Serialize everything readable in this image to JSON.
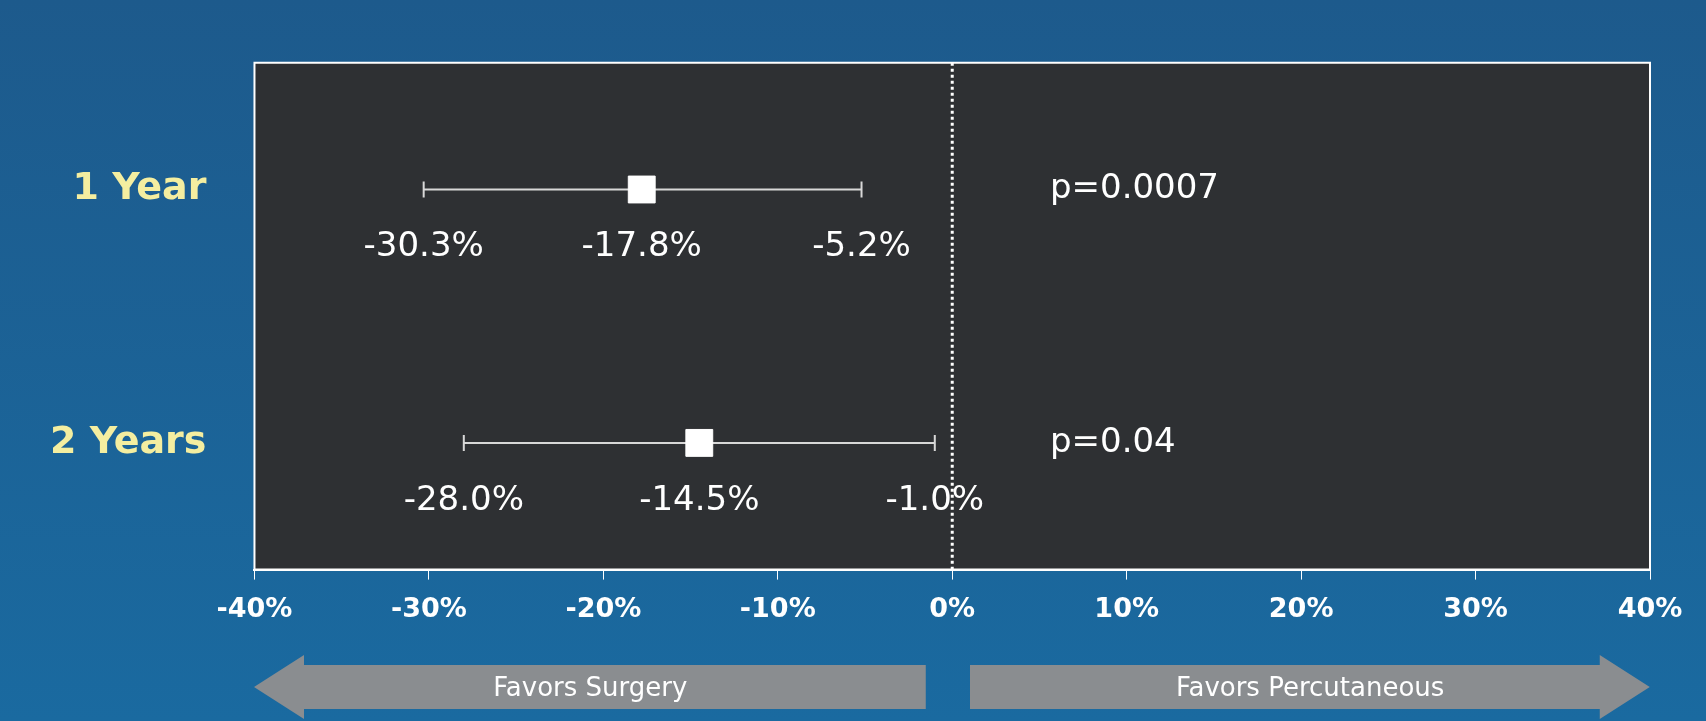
{
  "chart_data": {
    "type": "scatter",
    "orientation": "horizontal",
    "categories": [
      "1 Year",
      "2 Years"
    ],
    "values": [
      -17.8,
      -14.5
    ],
    "color": "#ffffff",
    "marker": "square",
    "errors": [
      [
        -30.3,
        -5.2
      ],
      [
        -28.0,
        -1.0
      ]
    ],
    "value_labels": [
      "-17.8%",
      "-14.5%"
    ],
    "xlim": [
      -40,
      40
    ],
    "xticks": [
      {
        "value": -40,
        "label": "-40%"
      },
      {
        "value": -30,
        "label": "-30%"
      },
      {
        "value": -20,
        "label": "-20%"
      },
      {
        "value": -10,
        "label": "-10%"
      },
      {
        "value": 0,
        "label": "0%"
      },
      {
        "value": 10,
        "label": "10%"
      },
      {
        "value": 20,
        "label": "20%"
      },
      {
        "value": 30,
        "label": "30%"
      },
      {
        "value": 40,
        "label": "40%"
      }
    ],
    "ref_lines": [
      {
        "axis": "x",
        "value": 0,
        "color": "#ffffff",
        "line_style": "dotted"
      }
    ],
    "annotations": [
      {
        "text": "-30.3%",
        "x": -30.3,
        "y": "1 Year"
      },
      {
        "text": "-5.2%",
        "x": -5.2,
        "y": "1 Year"
      },
      {
        "text": "-28.0%",
        "x": -28.0,
        "y": "2 Years"
      },
      {
        "text": "-1.0%",
        "x": -1.0,
        "y": "2 Years"
      },
      "p=0.0007",
      "p=0.04",
      "Favors Surgery",
      "Favors Percutaneous"
    ]
  }
}
